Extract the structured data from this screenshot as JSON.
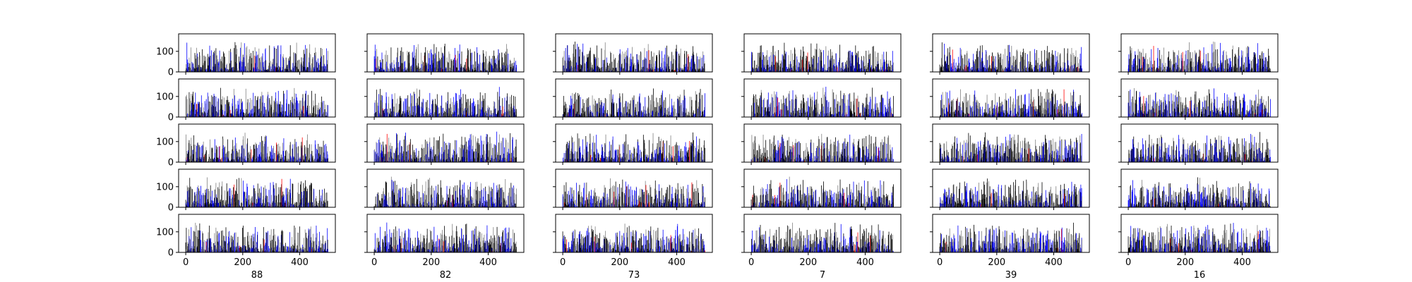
{
  "chart_data": {
    "type": "bar",
    "layout": "grid of small-multiple bar charts, 5 rows x 6 columns, shared axes",
    "rows": 5,
    "columns": [
      "88",
      "82",
      "73",
      "7",
      "39",
      "16"
    ],
    "x_ticks": [
      0,
      200,
      400
    ],
    "xlim": [
      -25,
      525
    ],
    "y_ticks": [
      0,
      100
    ],
    "ylim": [
      0,
      185
    ],
    "bars_per_panel": 500,
    "bar_value_range": [
      0,
      150
    ],
    "colors": [
      "#000000",
      "#808080",
      "#0000ff",
      "#ff0000"
    ],
    "grid": false,
    "legend": "none"
  }
}
